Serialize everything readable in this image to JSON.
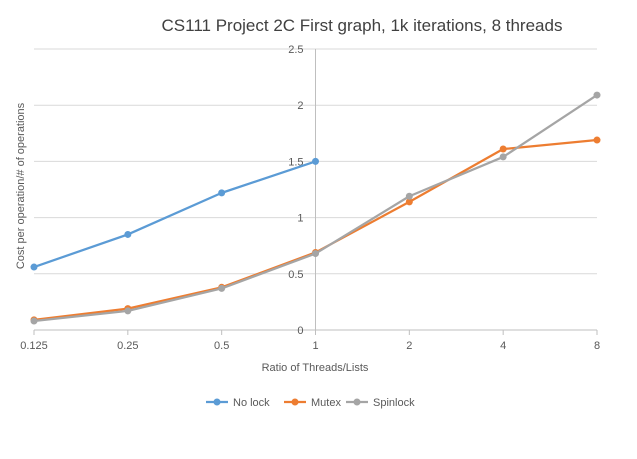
{
  "chart_data": {
    "type": "line",
    "title": "CS111 Project 2C First graph, 1k iterations, 8 threads",
    "xlabel": "Ratio of Threads/Lists",
    "ylabel": "Cost per operation/# of operations",
    "x_categories": [
      "0.125",
      "0.25",
      "0.5",
      "1",
      "2",
      "4",
      "8"
    ],
    "y_ticks": [
      "0",
      "0.5",
      "1",
      "1.5",
      "2",
      "2.5"
    ],
    "ylim": [
      0,
      2.5
    ],
    "grid": "horizontal",
    "legend_position": "bottom",
    "series": [
      {
        "name": "No lock",
        "color": "#5B9BD5",
        "values": [
          0.56,
          0.85,
          1.22,
          1.5,
          null,
          null,
          null
        ]
      },
      {
        "name": "Mutex",
        "color": "#ED7D31",
        "values": [
          0.09,
          0.19,
          0.38,
          0.69,
          1.14,
          1.61,
          1.69
        ]
      },
      {
        "name": "Spinlock",
        "color": "#A5A5A5",
        "values": [
          0.08,
          0.17,
          0.37,
          0.68,
          1.19,
          1.54,
          2.09
        ]
      }
    ]
  }
}
